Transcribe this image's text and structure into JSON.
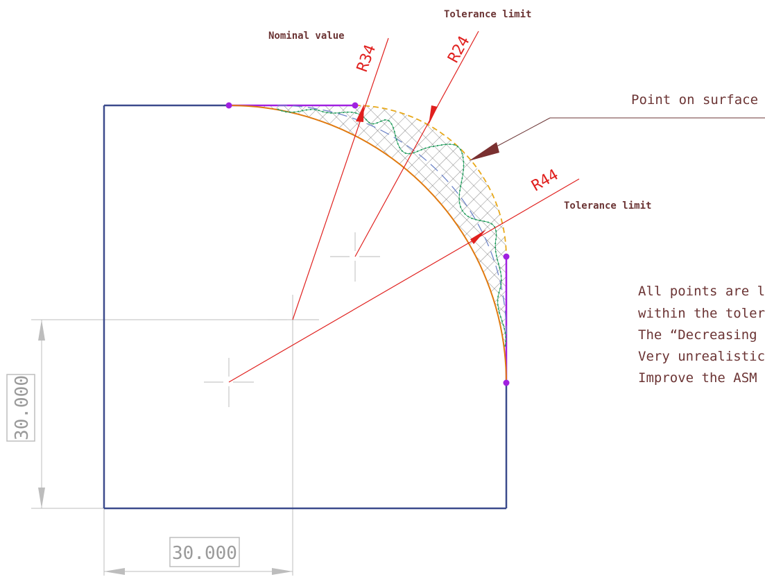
{
  "labels": {
    "nominal_value": "Nominal value",
    "tolerance_limit_top": "Tolerance limit",
    "tolerance_limit_right": "Tolerance limit",
    "point_on_surface": "Point on surface"
  },
  "radii": {
    "r34": "R34",
    "r24": "R24",
    "r44": "R44"
  },
  "note": {
    "line1": "All points are lo",
    "line2": "within the tolera",
    "line3": "The “Decreasing",
    "line4": "Very unrealistic",
    "line5": "Improve the ASM"
  },
  "dimensions": {
    "vertical": "30.000",
    "horizontal": "30.000"
  },
  "colors": {
    "outline": "#3b4a8c",
    "nominal_arc": "#e07a10",
    "tolerance_arc": "#e8a818",
    "leader_red": "#e0201e",
    "surface_points": "#1f9a5a",
    "endpoints": "#a020e0",
    "text_brown": "#6b3434"
  }
}
